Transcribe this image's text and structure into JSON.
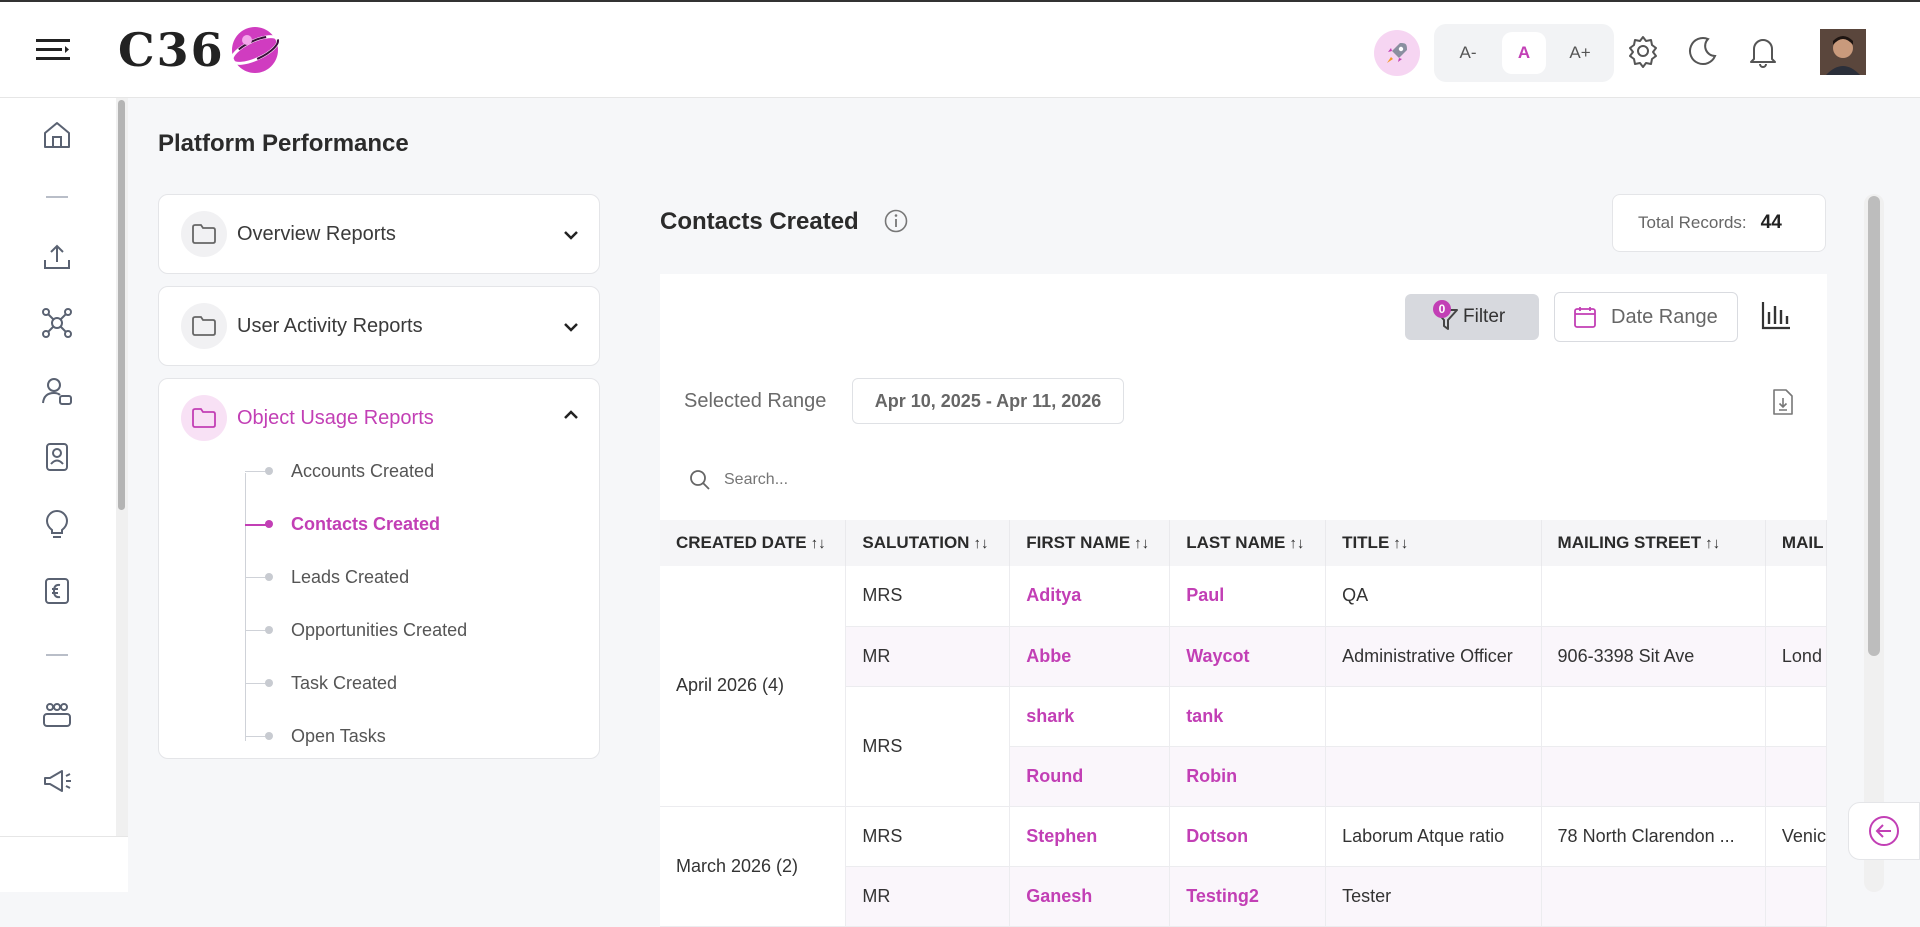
{
  "header": {
    "logo_text": "C36",
    "font_small": "A-",
    "font_default": "A",
    "font_large": "A+"
  },
  "page_title": "Platform Performance",
  "reports": {
    "overview": "Overview Reports",
    "user_activity": "User Activity Reports",
    "object_usage": "Object Usage Reports",
    "object_items": [
      {
        "label": "Accounts Created"
      },
      {
        "label": "Contacts Created",
        "active": true
      },
      {
        "label": "Leads Created"
      },
      {
        "label": "Opportunities Created"
      },
      {
        "label": "Task Created"
      },
      {
        "label": "Open Tasks"
      }
    ]
  },
  "panel": {
    "title": "Contacts Created",
    "total_label": "Total Records:",
    "total_value": "44",
    "filter_label": "Filter",
    "filter_count": "0",
    "date_range_label": "Date Range",
    "selected_range_label": "Selected Range",
    "selected_range_value": "Apr 10, 2025 - Apr 11, 2026",
    "search_placeholder": "Search..."
  },
  "table": {
    "columns": [
      "CREATED DATE",
      "SALUTATION",
      "FIRST NAME",
      "LAST NAME",
      "TITLE",
      "MAILING STREET",
      "MAIL"
    ],
    "groups": [
      {
        "label": "April 2026 (4)"
      },
      {
        "label": "March 2026 (2)"
      }
    ],
    "rows": [
      {
        "salutation": "MRS",
        "first": "Aditya",
        "last": "Paul",
        "title": "QA",
        "street": "",
        "city": ""
      },
      {
        "salutation": "MR",
        "first": "Abbe",
        "last": "Waycot",
        "title": "Administrative Officer",
        "street": "906-3398 Sit Ave",
        "city": "Lond"
      },
      {
        "salutation": "MRS",
        "first": "shark",
        "last": "tank",
        "title": "",
        "street": "",
        "city": ""
      },
      {
        "salutation": "",
        "first": "Round",
        "last": "Robin",
        "title": "",
        "street": "",
        "city": ""
      },
      {
        "salutation": "MRS",
        "first": "Stephen",
        "last": "Dotson",
        "title": "Laborum Atque ratio",
        "street": "78 North Clarendon ...",
        "city": "Venic"
      },
      {
        "salutation": "MR",
        "first": "Ganesh",
        "last": "Testing2",
        "title": "Tester",
        "street": "",
        "city": ""
      }
    ]
  },
  "colors": {
    "accent": "#c23fb5",
    "accent_light": "#f8e1f5"
  }
}
